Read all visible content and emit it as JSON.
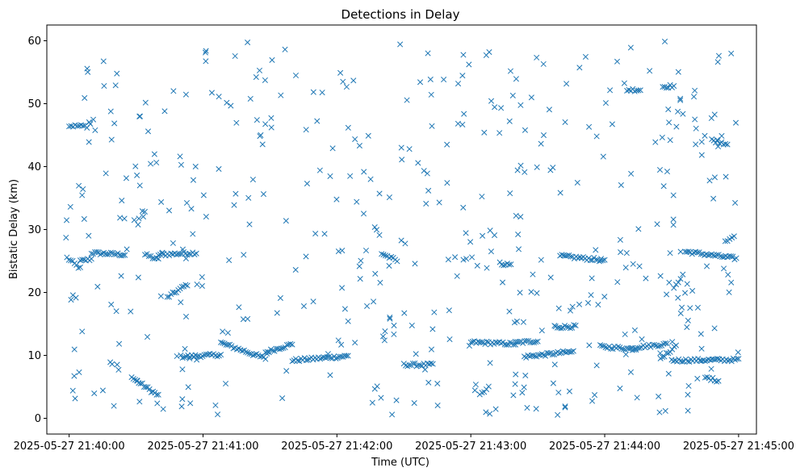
{
  "chart_data": {
    "type": "scatter",
    "title": "Detections in Delay",
    "xlabel": "Time (UTC)",
    "ylabel": "Bistatic Delay (km)",
    "xlim": [
      "2025-05-27 21:39:50",
      "2025-05-27 21:45:08"
    ],
    "ylim": [
      -2.5,
      62.5
    ],
    "x_ticks": [
      "2025-05-27 21:40:00",
      "2025-05-27 21:41:00",
      "2025-05-27 21:42:00",
      "2025-05-27 21:43:00",
      "2025-05-27 21:44:00",
      "2025-05-27 21:45:00"
    ],
    "y_ticks": [
      0,
      10,
      20,
      30,
      40,
      50,
      60
    ],
    "marker": "x",
    "color": "#1f77b4",
    "grid": false,
    "series": [
      {
        "tracks": [
          {
            "start": "2025-05-27 21:39:59",
            "end": "2025-05-27 21:40:05",
            "y0": 25.5,
            "y1": 23.8
          },
          {
            "start": "2025-05-27 21:40:05",
            "end": "2025-05-27 21:40:10",
            "y0": 25.0,
            "y1": 25.3
          },
          {
            "start": "2025-05-27 21:40:10",
            "end": "2025-05-27 21:40:25",
            "y0": 26.3,
            "y1": 26.0
          },
          {
            "start": "2025-05-27 21:40:34",
            "end": "2025-05-27 21:40:40",
            "y0": 26.0,
            "y1": 25.2
          },
          {
            "start": "2025-05-27 21:40:40",
            "end": "2025-05-27 21:40:57",
            "y0": 26.0,
            "y1": 26.3
          },
          {
            "start": "2025-05-27 21:40:00",
            "end": "2025-05-27 21:40:08",
            "y0": 46.5,
            "y1": 46.4
          },
          {
            "start": "2025-05-27 21:40:28",
            "end": "2025-05-27 21:40:40",
            "y0": 6.5,
            "y1": 3.6
          },
          {
            "start": "2025-05-27 21:40:44",
            "end": "2025-05-27 21:40:53",
            "y0": 19.2,
            "y1": 21.3
          },
          {
            "start": "2025-05-27 21:40:50",
            "end": "2025-05-27 21:41:08",
            "y0": 9.8,
            "y1": 10.1
          },
          {
            "start": "2025-05-27 21:41:08",
            "end": "2025-05-27 21:41:28",
            "y0": 12.0,
            "y1": 9.5
          },
          {
            "start": "2025-05-27 21:41:28",
            "end": "2025-05-27 21:41:40",
            "y0": 10.5,
            "y1": 11.8
          },
          {
            "start": "2025-05-27 21:41:40",
            "end": "2025-05-27 21:42:05",
            "y0": 9.2,
            "y1": 9.9
          },
          {
            "start": "2025-05-27 21:42:20",
            "end": "2025-05-27 21:42:27",
            "y0": 26.2,
            "y1": 25.0
          },
          {
            "start": "2025-05-27 21:42:30",
            "end": "2025-05-27 21:42:43",
            "y0": 8.5,
            "y1": 8.5
          },
          {
            "start": "2025-05-27 21:43:00",
            "end": "2025-05-27 21:43:20",
            "y0": 12.1,
            "y1": 11.8
          },
          {
            "start": "2025-05-27 21:43:20",
            "end": "2025-05-27 21:43:30",
            "y0": 12.0,
            "y1": 12.3
          },
          {
            "start": "2025-05-27 21:43:04",
            "end": "2025-05-27 21:43:08",
            "y0": 3.8,
            "y1": 5.0
          },
          {
            "start": "2025-05-27 21:43:13",
            "end": "2025-05-27 21:43:18",
            "y0": 24.6,
            "y1": 24.4
          },
          {
            "start": "2025-05-27 21:43:24",
            "end": "2025-05-27 21:43:46",
            "y0": 9.8,
            "y1": 10.6
          },
          {
            "start": "2025-05-27 21:43:38",
            "end": "2025-05-27 21:43:47",
            "y0": 14.5,
            "y1": 14.6
          },
          {
            "start": "2025-05-27 21:43:40",
            "end": "2025-05-27 21:44:00",
            "y0": 25.8,
            "y1": 25.1
          },
          {
            "start": "2025-05-27 21:43:58",
            "end": "2025-05-27 21:44:14",
            "y0": 11.4,
            "y1": 11.0
          },
          {
            "start": "2025-05-27 21:44:14",
            "end": "2025-05-27 21:44:28",
            "y0": 11.3,
            "y1": 11.8
          },
          {
            "start": "2025-05-27 21:44:10",
            "end": "2025-05-27 21:44:16",
            "y0": 52.2,
            "y1": 52.2
          },
          {
            "start": "2025-05-27 21:44:26",
            "end": "2025-05-27 21:44:31",
            "y0": 52.7,
            "y1": 52.8
          },
          {
            "start": "2025-05-27 21:44:31",
            "end": "2025-05-27 21:44:35",
            "y0": 20.5,
            "y1": 23.0
          },
          {
            "start": "2025-05-27 21:44:25",
            "end": "2025-05-27 21:44:32",
            "y0": 9.3,
            "y1": 11.6
          },
          {
            "start": "2025-05-27 21:44:36",
            "end": "2025-05-27 21:44:59",
            "y0": 26.5,
            "y1": 25.4
          },
          {
            "start": "2025-05-27 21:44:30",
            "end": "2025-05-27 21:45:00",
            "y0": 9.2,
            "y1": 9.3
          },
          {
            "start": "2025-05-27 21:44:45",
            "end": "2025-05-27 21:44:51",
            "y0": 6.5,
            "y1": 6.0
          },
          {
            "start": "2025-05-27 21:44:54",
            "end": "2025-05-27 21:44:58",
            "y0": 28.2,
            "y1": 28.9
          },
          {
            "start": "2025-05-27 21:44:48",
            "end": "2025-05-27 21:44:55",
            "y0": 44.2,
            "y1": 43.6
          }
        ],
        "scatter_range": {
          "x": [
            "2025-05-27 21:39:58",
            "2025-05-27 21:45:00"
          ],
          "y": [
            0.5,
            60.0
          ],
          "count": 470
        }
      }
    ]
  }
}
